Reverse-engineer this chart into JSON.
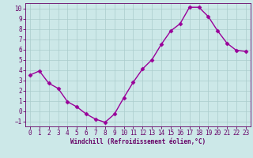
{
  "x": [
    0,
    1,
    2,
    3,
    4,
    5,
    6,
    7,
    8,
    9,
    10,
    11,
    12,
    13,
    14,
    15,
    16,
    17,
    18,
    19,
    20,
    21,
    22,
    23
  ],
  "y": [
    3.5,
    3.9,
    2.7,
    2.2,
    0.9,
    0.4,
    -0.3,
    -0.8,
    -1.1,
    -0.3,
    1.3,
    2.8,
    4.1,
    5.0,
    6.5,
    7.8,
    8.5,
    10.1,
    10.1,
    9.2,
    7.8,
    6.6,
    5.9,
    5.8
  ],
  "line_color": "#990099",
  "marker": "D",
  "markersize": 2.5,
  "bg_color": "#cce8e8",
  "grid_color": "#aacccc",
  "xlabel": "Windchill (Refroidissement éolien,°C)",
  "xlabel_color": "#660066",
  "tick_color": "#660066",
  "spine_color": "#660066",
  "xlim": [
    -0.5,
    23.5
  ],
  "ylim": [
    -1.5,
    10.5
  ],
  "yticks": [
    -1,
    0,
    1,
    2,
    3,
    4,
    5,
    6,
    7,
    8,
    9,
    10
  ],
  "xticks": [
    0,
    1,
    2,
    3,
    4,
    5,
    6,
    7,
    8,
    9,
    10,
    11,
    12,
    13,
    14,
    15,
    16,
    17,
    18,
    19,
    20,
    21,
    22,
    23
  ],
  "tick_fontsize": 5.5,
  "xlabel_fontsize": 5.5,
  "linewidth": 1.0
}
